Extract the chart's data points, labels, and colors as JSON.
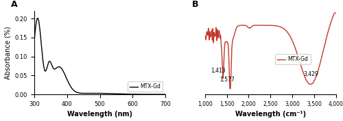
{
  "panel_A": {
    "title": "A",
    "xlabel": "Wavelength (nm)",
    "ylabel": "Absorbance (%)",
    "xlim": [
      300,
      700
    ],
    "ylim": [
      0.0,
      0.22
    ],
    "yticks": [
      0.0,
      0.05,
      0.1,
      0.15,
      0.2
    ],
    "xticks": [
      300,
      400,
      500,
      600,
      700
    ],
    "line_color": "#000000",
    "legend_label": "MTX-Gd"
  },
  "panel_B": {
    "title": "B",
    "xlabel": "Wavelength (cm⁻¹)",
    "ylabel": "",
    "xlim": [
      1000,
      4000
    ],
    "xticks": [
      1000,
      1500,
      2000,
      2500,
      3000,
      3500,
      4000
    ],
    "xtick_labels": [
      "1,000",
      "1,500",
      "2,000",
      "2,500",
      "3,000",
      "3,500",
      "4,000"
    ],
    "line_color": "#c0392b",
    "legend_label": "MTX-Gd",
    "annot_1413": {
      "text": "1,413",
      "xi": 1413
    },
    "annot_1577": {
      "text": "1,577",
      "xi": 1577
    },
    "annot_3429": {
      "text": "3,429",
      "xi": 3429
    }
  },
  "background_color": "#ffffff",
  "line_width": 1.0
}
